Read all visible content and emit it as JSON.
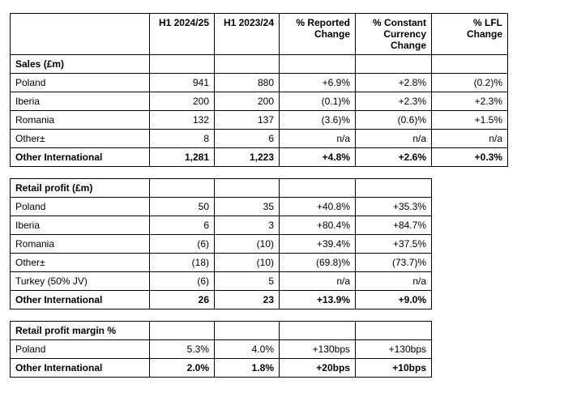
{
  "columns": {
    "c1": "H1 2024/25",
    "c2": "H1 2023/24",
    "c3a": "% Reported",
    "c3b": "Change",
    "c4a": "% Constant",
    "c4b": "Currency",
    "c4c": "Change",
    "c5a": "% LFL",
    "c5b": "Change"
  },
  "sales": {
    "heading": "Sales (£m)",
    "rows": [
      {
        "label": "Poland",
        "v1": "941",
        "v2": "880",
        "v3": "+6.9%",
        "v4": "+2.8%",
        "v5": "(0.2)%"
      },
      {
        "label": "Iberia",
        "v1": "200",
        "v2": "200",
        "v3": "(0.1)%",
        "v4": "+2.3%",
        "v5": "+2.3%"
      },
      {
        "label": "Romania",
        "v1": "132",
        "v2": "137",
        "v3": "(3.6)%",
        "v4": "(0.6)%",
        "v5": "+1.5%"
      },
      {
        "label": "Other±",
        "v1": "8",
        "v2": "6",
        "v3": "n/a",
        "v4": "n/a",
        "v5": "n/a"
      }
    ],
    "total": {
      "label": "Other International",
      "v1": "1,281",
      "v2": "1,223",
      "v3": "+4.8%",
      "v4": "+2.6%",
      "v5": "+0.3%"
    }
  },
  "profit": {
    "heading": "Retail profit (£m)",
    "rows": [
      {
        "label": "Poland",
        "v1": "50",
        "v2": "35",
        "v3": "+40.8%",
        "v4": "+35.3%"
      },
      {
        "label": "Iberia",
        "v1": "6",
        "v2": "3",
        "v3": "+80.4%",
        "v4": "+84.7%"
      },
      {
        "label": "Romania",
        "v1": "(6)",
        "v2": "(10)",
        "v3": "+39.4%",
        "v4": "+37.5%"
      },
      {
        "label": "Other±",
        "v1": "(18)",
        "v2": "(10)",
        "v3": "(69.8)%",
        "v4": "(73.7)%"
      },
      {
        "label": "Turkey (50% JV)",
        "v1": "(6)",
        "v2": "5",
        "v3": "n/a",
        "v4": "n/a"
      }
    ],
    "total": {
      "label": "Other International",
      "v1": "26",
      "v2": "23",
      "v3": "+13.9%",
      "v4": "+9.0%"
    }
  },
  "margin": {
    "heading": "Retail profit margin %",
    "rows": [
      {
        "label": "Poland",
        "v1": "5.3%",
        "v2": "4.0%",
        "v3": "+130bps",
        "v4": "+130bps"
      }
    ],
    "total": {
      "label": "Other International",
      "v1": "2.0%",
      "v2": "1.8%",
      "v3": "+20bps",
      "v4": "+10bps"
    }
  }
}
